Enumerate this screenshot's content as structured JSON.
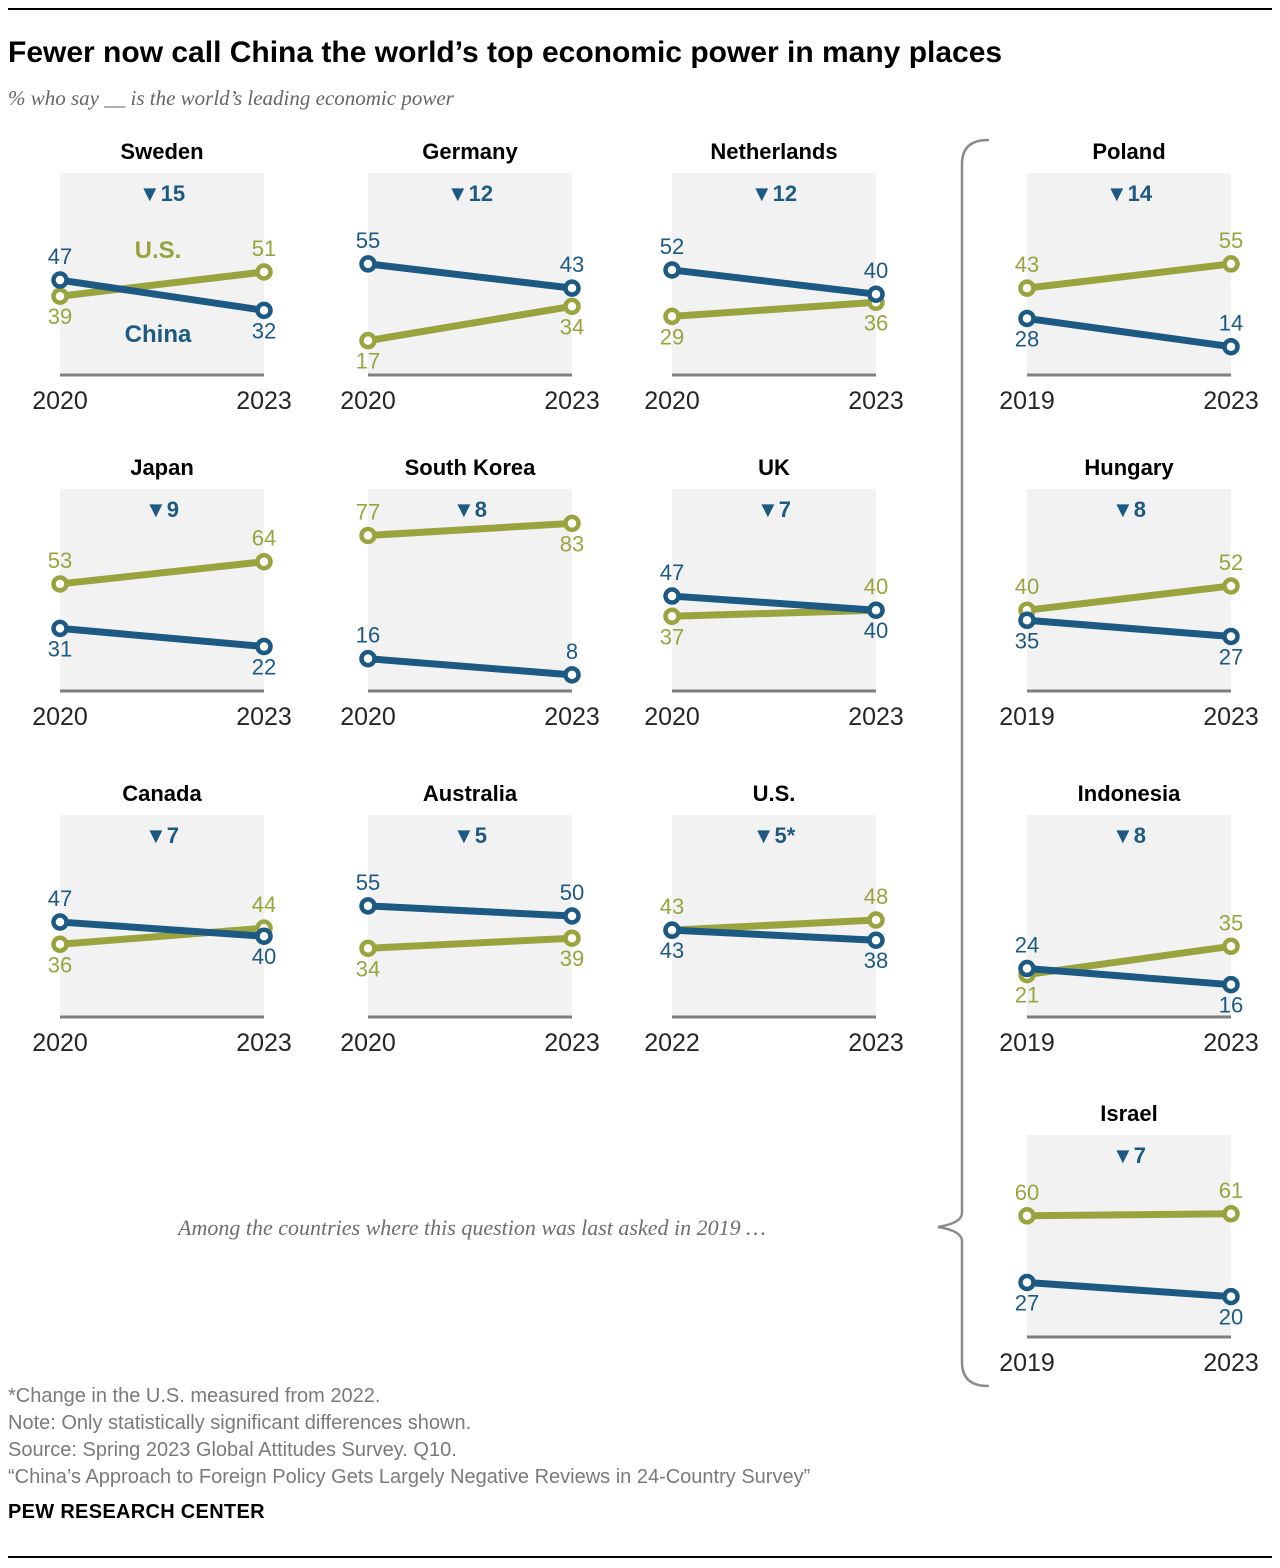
{
  "header": {
    "title": "Fewer now call China the world’s top economic power in many places",
    "subtitle": "% who say __ is the world’s leading economic power"
  },
  "legend": {
    "us_label": "U.S.",
    "china_label": "China"
  },
  "colors": {
    "us": "#9aa43e",
    "china": "#1d5a83",
    "panel_bg": "#f2f2f2",
    "axis": "#7f7f7f",
    "bracket": "#8b8b8b",
    "year_text": "#262626"
  },
  "bracket_note": "Among the countries where this question was last asked in 2019 …",
  "chart_data": [
    {
      "type": "line",
      "country": "Sweden",
      "x": [
        "2020",
        "2023"
      ],
      "change_label": "▼15",
      "ylim": [
        0,
        100
      ],
      "series": [
        {
          "name": "U.S.",
          "key": "us",
          "values": [
            39,
            51
          ],
          "label_pos": [
            "below",
            "above"
          ]
        },
        {
          "name": "China",
          "key": "china",
          "values": [
            47,
            32
          ],
          "label_pos": [
            "above",
            "below"
          ]
        }
      ],
      "series_annotations": [
        {
          "key": "us",
          "text": "U.S."
        },
        {
          "key": "china",
          "text": "China"
        }
      ]
    },
    {
      "type": "line",
      "country": "Germany",
      "x": [
        "2020",
        "2023"
      ],
      "change_label": "▼12",
      "ylim": [
        0,
        100
      ],
      "series": [
        {
          "name": "U.S.",
          "key": "us",
          "values": [
            17,
            34
          ],
          "label_pos": [
            "below",
            "below"
          ]
        },
        {
          "name": "China",
          "key": "china",
          "values": [
            55,
            43
          ],
          "label_pos": [
            "above",
            "above"
          ]
        }
      ]
    },
    {
      "type": "line",
      "country": "Netherlands",
      "x": [
        "2020",
        "2023"
      ],
      "change_label": "▼12",
      "ylim": [
        0,
        100
      ],
      "series": [
        {
          "name": "U.S.",
          "key": "us",
          "values": [
            29,
            36
          ],
          "label_pos": [
            "below",
            "below"
          ]
        },
        {
          "name": "China",
          "key": "china",
          "values": [
            52,
            40
          ],
          "label_pos": [
            "above",
            "above"
          ]
        }
      ]
    },
    {
      "type": "line",
      "country": "Poland",
      "x": [
        "2019",
        "2023"
      ],
      "change_label": "▼14",
      "ylim": [
        0,
        100
      ],
      "series": [
        {
          "name": "U.S.",
          "key": "us",
          "values": [
            43,
            55
          ],
          "label_pos": [
            "above",
            "above"
          ]
        },
        {
          "name": "China",
          "key": "china",
          "values": [
            28,
            14
          ],
          "label_pos": [
            "below",
            "above"
          ]
        }
      ]
    },
    {
      "type": "line",
      "country": "Japan",
      "x": [
        "2020",
        "2023"
      ],
      "change_label": "▼9",
      "ylim": [
        0,
        100
      ],
      "series": [
        {
          "name": "U.S.",
          "key": "us",
          "values": [
            53,
            64
          ],
          "label_pos": [
            "above",
            "above"
          ]
        },
        {
          "name": "China",
          "key": "china",
          "values": [
            31,
            22
          ],
          "label_pos": [
            "below",
            "below"
          ]
        }
      ]
    },
    {
      "type": "line",
      "country": "South Korea",
      "x": [
        "2020",
        "2023"
      ],
      "change_label": "▼8",
      "ylim": [
        0,
        100
      ],
      "series": [
        {
          "name": "U.S.",
          "key": "us",
          "values": [
            77,
            83
          ],
          "label_pos": [
            "above",
            "below"
          ]
        },
        {
          "name": "China",
          "key": "china",
          "values": [
            16,
            8
          ],
          "label_pos": [
            "above",
            "above"
          ]
        }
      ]
    },
    {
      "type": "line",
      "country": "UK",
      "x": [
        "2020",
        "2023"
      ],
      "change_label": "▼7",
      "ylim": [
        0,
        100
      ],
      "series": [
        {
          "name": "U.S.",
          "key": "us",
          "values": [
            37,
            40
          ],
          "label_pos": [
            "below",
            "above"
          ]
        },
        {
          "name": "China",
          "key": "china",
          "values": [
            47,
            40
          ],
          "label_pos": [
            "above",
            "below"
          ]
        }
      ]
    },
    {
      "type": "line",
      "country": "Hungary",
      "x": [
        "2019",
        "2023"
      ],
      "change_label": "▼8",
      "ylim": [
        0,
        100
      ],
      "series": [
        {
          "name": "U.S.",
          "key": "us",
          "values": [
            40,
            52
          ],
          "label_pos": [
            "above",
            "above"
          ]
        },
        {
          "name": "China",
          "key": "china",
          "values": [
            35,
            27
          ],
          "label_pos": [
            "below",
            "below"
          ]
        }
      ]
    },
    {
      "type": "line",
      "country": "Canada",
      "x": [
        "2020",
        "2023"
      ],
      "change_label": "▼7",
      "ylim": [
        0,
        100
      ],
      "series": [
        {
          "name": "U.S.",
          "key": "us",
          "values": [
            36,
            44
          ],
          "label_pos": [
            "below",
            "above"
          ]
        },
        {
          "name": "China",
          "key": "china",
          "values": [
            47,
            40
          ],
          "label_pos": [
            "above",
            "below"
          ]
        }
      ]
    },
    {
      "type": "line",
      "country": "Australia",
      "x": [
        "2020",
        "2023"
      ],
      "change_label": "▼5",
      "ylim": [
        0,
        100
      ],
      "series": [
        {
          "name": "U.S.",
          "key": "us",
          "values": [
            34,
            39
          ],
          "label_pos": [
            "below",
            "below"
          ]
        },
        {
          "name": "China",
          "key": "china",
          "values": [
            55,
            50
          ],
          "label_pos": [
            "above",
            "above"
          ]
        }
      ]
    },
    {
      "type": "line",
      "country": "U.S.",
      "x": [
        "2022",
        "2023"
      ],
      "change_label": "▼5*",
      "ylim": [
        0,
        100
      ],
      "series": [
        {
          "name": "U.S.",
          "key": "us",
          "values": [
            43,
            48
          ],
          "label_pos": [
            "above",
            "above"
          ]
        },
        {
          "name": "China",
          "key": "china",
          "values": [
            43,
            38
          ],
          "label_pos": [
            "below",
            "below"
          ]
        }
      ]
    },
    {
      "type": "line",
      "country": "Indonesia",
      "x": [
        "2019",
        "2023"
      ],
      "change_label": "▼8",
      "ylim": [
        0,
        100
      ],
      "series": [
        {
          "name": "U.S.",
          "key": "us",
          "values": [
            21,
            35
          ],
          "label_pos": [
            "below",
            "above"
          ]
        },
        {
          "name": "China",
          "key": "china",
          "values": [
            24,
            16
          ],
          "label_pos": [
            "above",
            "below"
          ]
        }
      ]
    },
    {
      "type": "line",
      "country": "Israel",
      "x": [
        "2019",
        "2023"
      ],
      "change_label": "▼7",
      "ylim": [
        0,
        100
      ],
      "series": [
        {
          "name": "U.S.",
          "key": "us",
          "values": [
            60,
            61
          ],
          "label_pos": [
            "above",
            "above"
          ]
        },
        {
          "name": "China",
          "key": "china",
          "values": [
            27,
            20
          ],
          "label_pos": [
            "below",
            "below"
          ]
        }
      ]
    }
  ],
  "footnotes": [
    "*Change in the U.S. measured from 2022.",
    "Note: Only statistically significant differences shown.",
    "Source: Spring 2023 Global Attitudes Survey. Q10.",
    "“China’s Approach to Foreign Policy Gets Largely Negative Reviews in 24-Country Survey”"
  ],
  "brand": "PEW RESEARCH CENTER"
}
